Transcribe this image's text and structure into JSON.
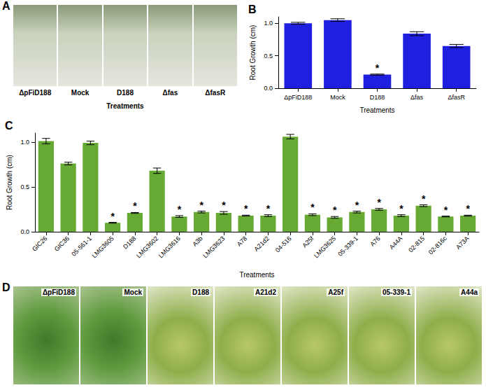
{
  "chart_data": [
    {
      "type": "bar",
      "title": "B",
      "x_label": "Treatments",
      "y_label": "Root Growth (cm)",
      "categories": [
        "ΔpFiD188",
        "Mock",
        "D188",
        "Δfas",
        "ΔfasR"
      ],
      "values": [
        1.0,
        1.05,
        0.21,
        0.84,
        0.65
      ],
      "errors": [
        0.015,
        0.02,
        0.008,
        0.03,
        0.025
      ],
      "annotations": [
        {
          "category": "D188",
          "text": "*"
        }
      ],
      "color": "#1f1fe0",
      "ylim": [
        0,
        1.1
      ],
      "yticks": [
        {
          "value": 0,
          "label": "0.0"
        },
        {
          "value": 0.5,
          "label": "0.5"
        },
        {
          "value": 1,
          "label": "1.0"
        }
      ],
      "grid": false
    },
    {
      "type": "bar",
      "title": "C",
      "x_label": "Treatments",
      "y_label": "Root Growth (cm)",
      "categories": [
        "GIC26",
        "GIC36",
        "05-561-1",
        "LMG3605",
        "D188",
        "LMG3602",
        "LMG3616",
        "A3b",
        "LMG3623",
        "A78",
        "A21d2",
        "04-516",
        "A25f",
        "LMG3625",
        "05-339-1",
        "A76",
        "A44A",
        "02-815",
        "02-816c",
        "A73A"
      ],
      "values": [
        1.01,
        0.76,
        0.99,
        0.1,
        0.21,
        0.68,
        0.17,
        0.22,
        0.21,
        0.18,
        0.18,
        1.06,
        0.19,
        0.16,
        0.22,
        0.25,
        0.18,
        0.29,
        0.17,
        0.18
      ],
      "errors": [
        0.03,
        0.015,
        0.02,
        0.005,
        0.005,
        0.03,
        0.01,
        0.01,
        0.015,
        0.005,
        0.01,
        0.025,
        0.01,
        0.01,
        0.01,
        0.01,
        0.01,
        0.01,
        0.005,
        0.005
      ],
      "annotations": [
        {
          "category": "LMG3605",
          "text": "*"
        },
        {
          "category": "D188",
          "text": "*"
        },
        {
          "category": "LMG3616",
          "text": "*"
        },
        {
          "category": "A3b",
          "text": "*"
        },
        {
          "category": "LMG3623",
          "text": "*"
        },
        {
          "category": "A78",
          "text": "*"
        },
        {
          "category": "A21d2",
          "text": "*"
        },
        {
          "category": "A25f",
          "text": "*"
        },
        {
          "category": "LMG3625",
          "text": "*"
        },
        {
          "category": "05-339-1",
          "text": "*"
        },
        {
          "category": "A76",
          "text": "*"
        },
        {
          "category": "A44A",
          "text": "*"
        },
        {
          "category": "02-815",
          "text": "*"
        },
        {
          "category": "02-816c",
          "text": "*"
        },
        {
          "category": "A73A",
          "text": "*"
        }
      ],
      "color": "#66aa33",
      "ylim": [
        0,
        1.1
      ],
      "yticks": [
        {
          "value": 0,
          "label": "0.0"
        },
        {
          "value": 0.5,
          "label": "0.5"
        },
        {
          "value": 1,
          "label": "1.0"
        }
      ],
      "grid": false
    }
  ],
  "panels": [
    {
      "letter": "A",
      "photo_labels": [
        "ΔpFiD188",
        "Mock",
        "D188",
        "Δfas",
        "ΔfasR"
      ],
      "axis_label": "Treatments"
    },
    {
      "letter": "D",
      "photo_labels": [
        "ΔpFiD188",
        "Mock",
        "D188",
        "A21d2",
        "A25f",
        "05-339-1",
        "A44a"
      ]
    }
  ]
}
